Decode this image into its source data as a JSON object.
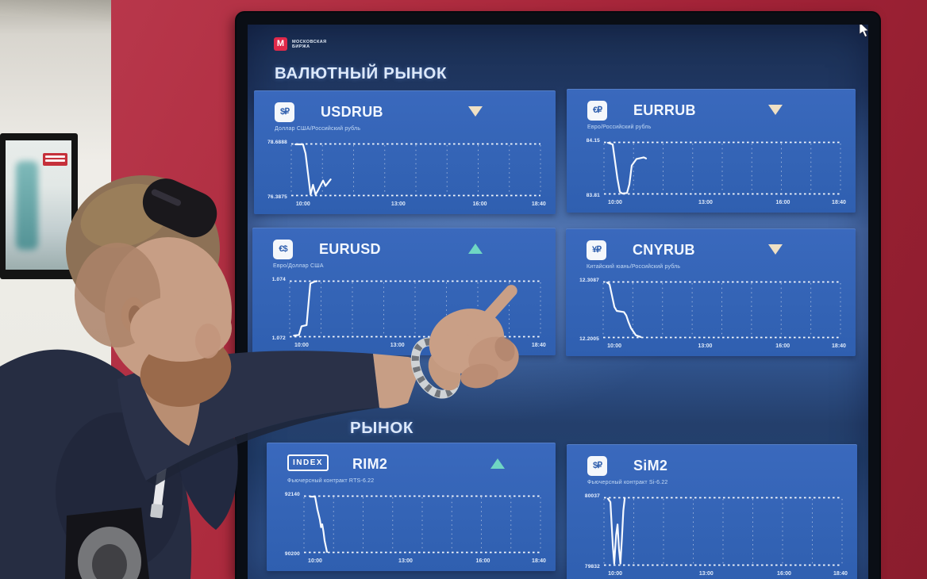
{
  "scene": {
    "description": "Man pointing at a Moscow Exchange market data display mounted in a red stand",
    "colors": {
      "red_stand": "#a32338",
      "panel_blue": "#3a69bd",
      "up_triangle": "#6fd6c3",
      "down_triangle": "#efe0c4"
    }
  },
  "screen": {
    "logo": {
      "mark": "М",
      "line1": "МОСКОВСКАЯ",
      "line2": "БИРЖА"
    },
    "section1_title": "ВАЛЮТНЫЙ РЫНОК",
    "section2_title_visible": "РЫНОК",
    "x_ticks": [
      "10:00",
      "13:00",
      "16:00",
      "18:40"
    ],
    "panels": [
      {
        "id": "USDRUB",
        "icon": "$₽",
        "title": "USDRUB",
        "subtitle": "Доллар США/Российский рубль",
        "trend": "down",
        "y_top": "78.6888",
        "y_bottom": "76.3875",
        "points": [
          [
            2,
            3
          ],
          [
            5,
            3
          ],
          [
            6,
            20
          ],
          [
            8,
            96
          ],
          [
            9,
            78
          ],
          [
            10,
            96
          ],
          [
            11,
            88
          ],
          [
            13,
            70
          ],
          [
            14,
            80
          ],
          [
            16,
            68
          ]
        ]
      },
      {
        "id": "EURRUB",
        "icon": "€₽",
        "title": "EURRUB",
        "subtitle": "Евро/Российский рубль",
        "trend": "down",
        "y_top": "84.15",
        "y_bottom": "83.81",
        "points": [
          [
            2,
            3
          ],
          [
            4,
            6
          ],
          [
            6,
            70
          ],
          [
            7,
            94
          ],
          [
            8,
            97
          ],
          [
            10,
            96
          ],
          [
            11,
            80
          ],
          [
            12,
            45
          ],
          [
            14,
            33
          ],
          [
            17,
            30
          ],
          [
            18,
            32
          ]
        ]
      },
      {
        "id": "EURUSD",
        "icon": "€$",
        "title": "EURUSD",
        "subtitle": "Евро/Доллар США",
        "trend": "up",
        "y_top": "1.074",
        "y_bottom": "1.072",
        "points": [
          [
            2,
            96
          ],
          [
            4,
            95
          ],
          [
            5,
            80
          ],
          [
            7,
            78
          ],
          [
            8,
            30
          ],
          [
            8.5,
            6
          ],
          [
            10,
            3
          ],
          [
            11,
            2
          ]
        ]
      },
      {
        "id": "CNYRUB",
        "icon": "¥₽",
        "title": "CNYRUB",
        "subtitle": "Китайский юань/Российский рубль",
        "trend": "down",
        "y_top": "12.3087",
        "y_bottom": "12.2005",
        "points": [
          [
            2,
            3
          ],
          [
            3,
            6
          ],
          [
            4,
            25
          ],
          [
            5,
            45
          ],
          [
            6,
            52
          ],
          [
            9,
            54
          ],
          [
            10,
            60
          ],
          [
            11,
            72
          ],
          [
            12,
            82
          ],
          [
            14,
            94
          ],
          [
            16,
            97
          ]
        ]
      },
      {
        "id": "RIM2",
        "icon": "INDEX",
        "icon_style": "badge",
        "title": "RIM2",
        "subtitle": "Фьючерсный контракт RTS-6.22",
        "trend": "up",
        "y_top": "92140",
        "y_bottom": "90200",
        "points": [
          [
            3,
            3
          ],
          [
            5,
            3
          ],
          [
            6,
            25
          ],
          [
            7,
            42
          ],
          [
            7.5,
            55
          ],
          [
            8,
            50
          ],
          [
            8.5,
            62
          ],
          [
            9,
            78
          ],
          [
            10,
            97
          ]
        ]
      },
      {
        "id": "SiM2",
        "icon": "$₽",
        "title": "SiM2",
        "subtitle": "Фьючерсный контракт Si-6.22",
        "trend": null,
        "y_top": "80037",
        "y_bottom": "79832",
        "points": [
          [
            2,
            3
          ],
          [
            3,
            8
          ],
          [
            4,
            70
          ],
          [
            4.6,
            96
          ],
          [
            5.4,
            55
          ],
          [
            6,
            40
          ],
          [
            6.6,
            75
          ],
          [
            7.2,
            96
          ],
          [
            7.8,
            60
          ],
          [
            8.4,
            20
          ],
          [
            9,
            2
          ]
        ]
      }
    ]
  }
}
